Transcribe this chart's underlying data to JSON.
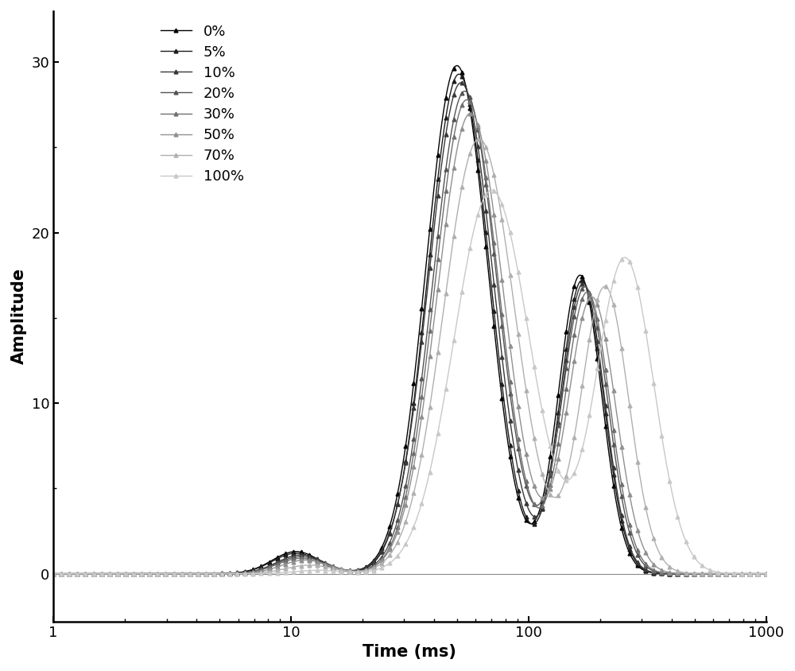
{
  "series": [
    {
      "label": "0%",
      "color": "#000000",
      "peak1_t": 10.5,
      "peak1_a": 1.3,
      "peak1_s": 0.1,
      "peak2_t": 50,
      "peak2_a": 29.8,
      "peak2_s": 0.13,
      "peak3_t": 165,
      "peak3_a": 17.5,
      "peak3_s": 0.09
    },
    {
      "label": "5%",
      "color": "#1c1c1c",
      "peak1_t": 10.5,
      "peak1_a": 1.2,
      "peak1_s": 0.1,
      "peak2_t": 51,
      "peak2_a": 29.3,
      "peak2_s": 0.13,
      "peak3_t": 168,
      "peak3_a": 17.2,
      "peak3_s": 0.09
    },
    {
      "label": "10%",
      "color": "#383838",
      "peak1_t": 11.0,
      "peak1_a": 1.1,
      "peak1_s": 0.1,
      "peak2_t": 52,
      "peak2_a": 28.8,
      "peak2_s": 0.135,
      "peak3_t": 170,
      "peak3_a": 17.0,
      "peak3_s": 0.09
    },
    {
      "label": "20%",
      "color": "#545454",
      "peak1_t": 11.0,
      "peak1_a": 1.0,
      "peak1_s": 0.1,
      "peak2_t": 54,
      "peak2_a": 28.3,
      "peak2_s": 0.135,
      "peak3_t": 173,
      "peak3_a": 16.8,
      "peak3_s": 0.095
    },
    {
      "label": "30%",
      "color": "#707070",
      "peak1_t": 11.0,
      "peak1_a": 0.9,
      "peak1_s": 0.1,
      "peak2_t": 55,
      "peak2_a": 27.8,
      "peak2_s": 0.135,
      "peak3_t": 177,
      "peak3_a": 16.5,
      "peak3_s": 0.095
    },
    {
      "label": "50%",
      "color": "#909090",
      "peak1_t": 11.5,
      "peak1_a": 0.8,
      "peak1_s": 0.1,
      "peak2_t": 57,
      "peak2_a": 27.0,
      "peak2_s": 0.14,
      "peak3_t": 185,
      "peak3_a": 16.2,
      "peak3_s": 0.1
    },
    {
      "label": "70%",
      "color": "#b0b0b0",
      "peak1_t": 12.0,
      "peak1_a": 0.5,
      "peak1_s": 0.1,
      "peak2_t": 62,
      "peak2_a": 25.5,
      "peak2_s": 0.15,
      "peak3_t": 210,
      "peak3_a": 16.8,
      "peak3_s": 0.1
    },
    {
      "label": "100%",
      "color": "#c8c8c8",
      "peak1_t": 13.0,
      "peak1_a": 0.2,
      "peak1_s": 0.1,
      "peak2_t": 70,
      "peak2_a": 22.5,
      "peak2_s": 0.16,
      "peak3_t": 255,
      "peak3_a": 18.5,
      "peak3_s": 0.12
    }
  ],
  "xlabel": "Time (ms)",
  "ylabel": "Amplitude",
  "xlim": [
    1,
    1000
  ],
  "ylim": [
    -2.8,
    33
  ],
  "yticks": [
    0,
    10,
    20,
    30
  ],
  "background_color": "#ffffff",
  "marker": "^",
  "markersize": 3.5,
  "linewidth": 1.0,
  "n_markers": 90
}
